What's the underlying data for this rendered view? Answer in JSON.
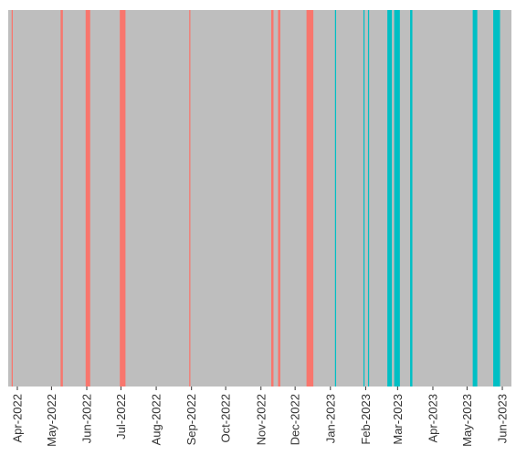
{
  "chart_data": {
    "type": "bar",
    "title": "",
    "xlabel": "",
    "ylabel": "",
    "x_range": [
      "2022-03-24",
      "2023-06-09"
    ],
    "background_color": "#bebebe",
    "grid": false,
    "legend": "none",
    "x_ticks": [
      {
        "date": "2022-04-01",
        "label": "Apr-2022"
      },
      {
        "date": "2022-05-01",
        "label": "May-2022"
      },
      {
        "date": "2022-06-01",
        "label": "Jun-2022"
      },
      {
        "date": "2022-07-01",
        "label": "Jul-2022"
      },
      {
        "date": "2022-08-01",
        "label": "Aug-2022"
      },
      {
        "date": "2022-09-01",
        "label": "Sep-2022"
      },
      {
        "date": "2022-10-01",
        "label": "Oct-2022"
      },
      {
        "date": "2022-11-01",
        "label": "Nov-2022"
      },
      {
        "date": "2022-12-01",
        "label": "Dec-2022"
      },
      {
        "date": "2023-01-01",
        "label": "Jan-2023"
      },
      {
        "date": "2023-02-01",
        "label": "Feb-2023"
      },
      {
        "date": "2023-03-01",
        "label": "Mar-2023"
      },
      {
        "date": "2023-04-01",
        "label": "Apr-2023"
      },
      {
        "date": "2023-05-01",
        "label": "May-2023"
      },
      {
        "date": "2023-06-01",
        "label": "Jun-2023"
      }
    ],
    "series": [
      {
        "color": "#f8766d",
        "bars": [
          {
            "start": "2022-03-27",
            "end": "2022-03-28"
          },
          {
            "start": "2022-05-09",
            "end": "2022-05-11"
          },
          {
            "start": "2022-05-31",
            "end": "2022-06-04"
          },
          {
            "start": "2022-06-30",
            "end": "2022-07-05"
          },
          {
            "start": "2022-08-30",
            "end": "2022-08-31"
          },
          {
            "start": "2022-11-10",
            "end": "2022-11-12"
          },
          {
            "start": "2022-11-16",
            "end": "2022-11-18"
          },
          {
            "start": "2022-12-11",
            "end": "2022-12-17"
          }
        ]
      },
      {
        "color": "#00bfc4",
        "bars": [
          {
            "start": "2023-01-05",
            "end": "2023-01-06"
          },
          {
            "start": "2023-01-30",
            "end": "2023-01-31"
          },
          {
            "start": "2023-02-03",
            "end": "2023-02-04"
          },
          {
            "start": "2023-02-20",
            "end": "2023-02-24"
          },
          {
            "start": "2023-02-26",
            "end": "2023-03-03"
          },
          {
            "start": "2023-03-12",
            "end": "2023-03-14"
          },
          {
            "start": "2023-05-06",
            "end": "2023-05-10"
          },
          {
            "start": "2023-05-24",
            "end": "2023-05-30"
          }
        ]
      }
    ]
  }
}
